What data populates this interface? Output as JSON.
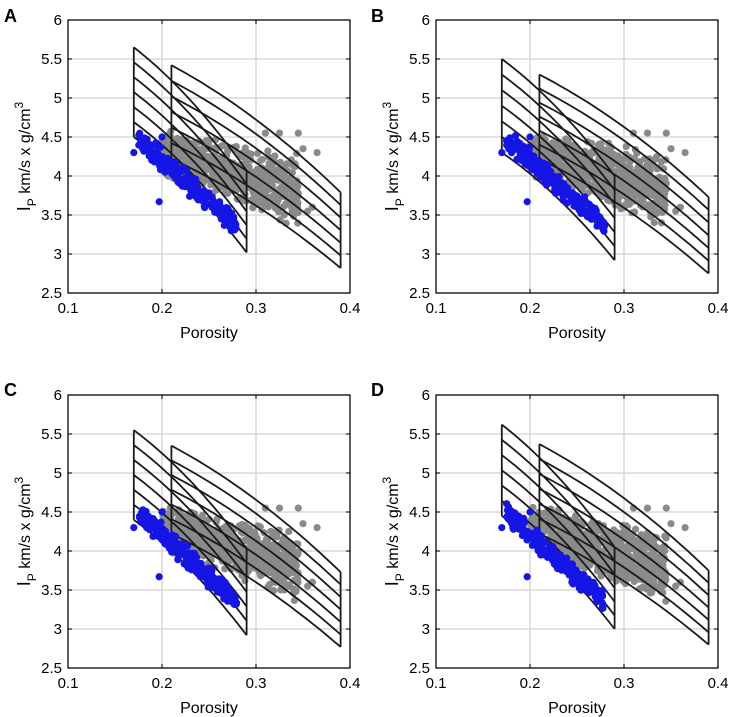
{
  "figure": {
    "panel_letters": [
      "A",
      "B",
      "C",
      "D"
    ],
    "colors": {
      "grid": "#d9d9d9",
      "axis": "#000000",
      "template_lines": "#1a1a1a",
      "gray_points": "#8a8a8a",
      "blue_points": "#1515e6"
    }
  },
  "chart_data": [
    {
      "panel": "A",
      "type": "scatter",
      "xlabel": "Porosity",
      "ylabel": {
        "main": "I",
        "sub": "P",
        "units": " km/s x g/cm",
        "sup": "3"
      },
      "xlim": [
        0.1,
        0.4
      ],
      "ylim": [
        2.5,
        6
      ],
      "xticks": [
        0.1,
        0.2,
        0.3,
        0.4
      ],
      "xtick_labels": [
        "0.1",
        "0.2",
        "0.3",
        "0.4"
      ],
      "yticks": [
        2.5,
        3,
        3.5,
        4,
        4.5,
        5,
        5.5,
        6
      ],
      "ytick_labels": [
        "2.5",
        "3",
        "3.5",
        "4",
        "4.5",
        "5",
        "5.5",
        "6"
      ],
      "grid": true,
      "template_sets": [
        {
          "x_range": [
            0.17,
            0.29
          ],
          "top": [
            5.65,
            4.07
          ],
          "bottom": [
            4.5,
            3.02
          ],
          "n_lines": 7
        },
        {
          "x_range": [
            0.21,
            0.39
          ],
          "top": [
            5.42,
            3.79
          ],
          "bottom": [
            4.22,
            2.82
          ],
          "n_lines": 7
        }
      ],
      "series": [
        {
          "name": "gray",
          "cloud": {
            "x_range": [
              0.2,
              0.345
            ],
            "y_at_xmin": [
              4.0,
              4.6
            ],
            "y_at_xmax": [
              3.3,
              4.3
            ],
            "count": 650
          },
          "outliers": {
            "x": [
              0.31,
              0.325,
              0.345,
              0.35,
              0.365,
              0.33,
              0.355,
              0.34,
              0.32,
              0.36
            ],
            "y": [
              4.55,
              4.55,
              4.55,
              4.35,
              4.3,
              3.5,
              3.55,
              3.9,
              3.7,
              3.6
            ]
          }
        },
        {
          "name": "blue",
          "cloud": {
            "x_range": [
              0.175,
              0.28
            ],
            "y_at_xmin": [
              4.3,
              4.65
            ],
            "y_at_xmax": [
              3.2,
              3.5
            ],
            "count": 220
          },
          "outliers": {
            "x": [
              0.17,
              0.197,
              0.2
            ],
            "y": [
              4.3,
              3.67,
              4.5
            ]
          }
        }
      ]
    },
    {
      "panel": "B",
      "type": "scatter",
      "xlabel": "Porosity",
      "ylabel": {
        "main": "I",
        "sub": "P",
        "units": " km/s x g/cm",
        "sup": "3"
      },
      "xlim": [
        0.1,
        0.4
      ],
      "ylim": [
        2.5,
        6
      ],
      "xticks": [
        0.1,
        0.2,
        0.3,
        0.4
      ],
      "xtick_labels": [
        "0.1",
        "0.2",
        "0.3",
        "0.4"
      ],
      "yticks": [
        2.5,
        3,
        3.5,
        4,
        4.5,
        5,
        5.5,
        6
      ],
      "ytick_labels": [
        "2.5",
        "3",
        "3.5",
        "4",
        "4.5",
        "5",
        "5.5",
        "6"
      ],
      "grid": true,
      "template_sets": [
        {
          "x_range": [
            0.17,
            0.29
          ],
          "top": [
            5.5,
            4.0
          ],
          "bottom": [
            4.3,
            2.92
          ],
          "n_lines": 7
        },
        {
          "x_range": [
            0.21,
            0.39
          ],
          "top": [
            5.3,
            3.73
          ],
          "bottom": [
            4.22,
            2.75
          ],
          "n_lines": 7
        }
      ],
      "series": [
        {
          "name": "gray",
          "cloud": {
            "x_range": [
              0.2,
              0.345
            ],
            "y_at_xmin": [
              4.0,
              4.6
            ],
            "y_at_xmax": [
              3.3,
              4.3
            ],
            "count": 650
          },
          "outliers": {
            "x": [
              0.31,
              0.325,
              0.345,
              0.35,
              0.365,
              0.33,
              0.355,
              0.34,
              0.32,
              0.36
            ],
            "y": [
              4.55,
              4.55,
              4.55,
              4.35,
              4.3,
              3.5,
              3.55,
              3.9,
              3.7,
              3.6
            ]
          }
        },
        {
          "name": "blue",
          "cloud": {
            "x_range": [
              0.175,
              0.28
            ],
            "y_at_xmin": [
              4.3,
              4.65
            ],
            "y_at_xmax": [
              3.2,
              3.5
            ],
            "count": 220
          },
          "outliers": {
            "x": [
              0.17,
              0.197,
              0.2
            ],
            "y": [
              4.3,
              3.67,
              4.5
            ]
          }
        }
      ]
    },
    {
      "panel": "C",
      "type": "scatter",
      "xlabel": "Porosity",
      "ylabel": {
        "main": "I",
        "sub": "P",
        "units": " km/s x g/cm",
        "sup": "3"
      },
      "xlim": [
        0.1,
        0.4
      ],
      "ylim": [
        2.5,
        6
      ],
      "xticks": [
        0.1,
        0.2,
        0.3,
        0.4
      ],
      "xtick_labels": [
        "0.1",
        "0.2",
        "0.3",
        "0.4"
      ],
      "yticks": [
        2.5,
        3,
        3.5,
        4,
        4.5,
        5,
        5.5,
        6
      ],
      "ytick_labels": [
        "2.5",
        "3",
        "3.5",
        "4",
        "4.5",
        "5",
        "5.5",
        "6"
      ],
      "grid": true,
      "template_sets": [
        {
          "x_range": [
            0.17,
            0.29
          ],
          "top": [
            5.55,
            4.03
          ],
          "bottom": [
            4.4,
            2.92
          ],
          "n_lines": 7
        },
        {
          "x_range": [
            0.21,
            0.39
          ],
          "top": [
            5.35,
            3.73
          ],
          "bottom": [
            4.22,
            2.77
          ],
          "n_lines": 7
        }
      ],
      "series": [
        {
          "name": "gray",
          "cloud": {
            "x_range": [
              0.2,
              0.345
            ],
            "y_at_xmin": [
              4.0,
              4.6
            ],
            "y_at_xmax": [
              3.3,
              4.3
            ],
            "count": 650
          },
          "outliers": {
            "x": [
              0.31,
              0.325,
              0.345,
              0.35,
              0.365,
              0.33,
              0.355,
              0.34,
              0.32,
              0.36
            ],
            "y": [
              4.55,
              4.55,
              4.55,
              4.35,
              4.3,
              3.5,
              3.55,
              3.9,
              3.7,
              3.6
            ]
          }
        },
        {
          "name": "blue",
          "cloud": {
            "x_range": [
              0.175,
              0.28
            ],
            "y_at_xmin": [
              4.3,
              4.65
            ],
            "y_at_xmax": [
              3.2,
              3.5
            ],
            "count": 220
          },
          "outliers": {
            "x": [
              0.17,
              0.197,
              0.2
            ],
            "y": [
              4.3,
              3.67,
              4.5
            ]
          }
        }
      ]
    },
    {
      "panel": "D",
      "type": "scatter",
      "xlabel": "Porosity",
      "ylabel": {
        "main": "I",
        "sub": "P",
        "units": " km/s x g/cm",
        "sup": "3"
      },
      "xlim": [
        0.1,
        0.4
      ],
      "ylim": [
        2.5,
        6
      ],
      "xticks": [
        0.1,
        0.2,
        0.3,
        0.4
      ],
      "xtick_labels": [
        "0.1",
        "0.2",
        "0.3",
        "0.4"
      ],
      "yticks": [
        2.5,
        3,
        3.5,
        4,
        4.5,
        5,
        5.5,
        6
      ],
      "ytick_labels": [
        "2.5",
        "3",
        "3.5",
        "4",
        "4.5",
        "5",
        "5.5",
        "6"
      ],
      "grid": true,
      "template_sets": [
        {
          "x_range": [
            0.17,
            0.29
          ],
          "top": [
            5.62,
            4.05
          ],
          "bottom": [
            4.45,
            3.0
          ],
          "n_lines": 7
        },
        {
          "x_range": [
            0.21,
            0.39
          ],
          "top": [
            5.37,
            3.75
          ],
          "bottom": [
            4.22,
            2.8
          ],
          "n_lines": 7
        }
      ],
      "series": [
        {
          "name": "gray",
          "cloud": {
            "x_range": [
              0.2,
              0.345
            ],
            "y_at_xmin": [
              4.0,
              4.6
            ],
            "y_at_xmax": [
              3.3,
              4.3
            ],
            "count": 650
          },
          "outliers": {
            "x": [
              0.31,
              0.325,
              0.345,
              0.35,
              0.365,
              0.33,
              0.355,
              0.34,
              0.32,
              0.36
            ],
            "y": [
              4.55,
              4.55,
              4.55,
              4.35,
              4.3,
              3.5,
              3.55,
              3.9,
              3.7,
              3.6
            ]
          }
        },
        {
          "name": "blue",
          "cloud": {
            "x_range": [
              0.175,
              0.28
            ],
            "y_at_xmin": [
              4.3,
              4.65
            ],
            "y_at_xmax": [
              3.2,
              3.5
            ],
            "count": 220
          },
          "outliers": {
            "x": [
              0.17,
              0.197,
              0.2
            ],
            "y": [
              4.3,
              3.67,
              4.5
            ]
          }
        }
      ]
    }
  ]
}
